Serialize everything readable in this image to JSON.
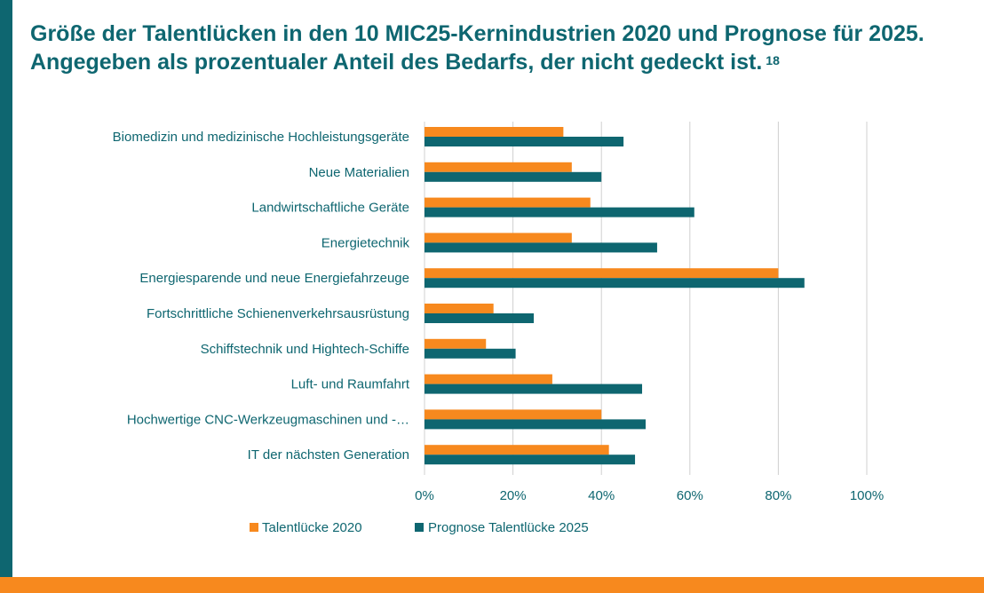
{
  "page": {
    "title": "Größe der Talentlücken in den 10 MIC25-Kernindustrien 2020 und Prognose für 2025. Angegeben als prozentualer Anteil des Bedarfs, der nicht gedeckt ist.",
    "footnote": "18"
  },
  "colors": {
    "teal": "#0e6670",
    "orange": "#f7891e",
    "grid": "#d0d0d0"
  },
  "chart_data": {
    "type": "bar",
    "orientation": "horizontal",
    "categories": [
      "Biomedizin und medizinische Hochleistungsgeräte",
      "Neue Materialien",
      "Landwirtschaftliche Geräte",
      "Energietechnik",
      "Energiesparende und neue Energiefahrzeuge",
      "Fortschrittliche Schienenverkehrsausrüstung",
      "Schiffstechnik und Hightech-Schiffe",
      "Luft- und Raumfahrt",
      "Hochwertige CNC-Werkzeugmaschinen und -…",
      "IT der nächsten Generation"
    ],
    "series": [
      {
        "name": "Talentlücke 2020",
        "color": "#f7891e",
        "values": [
          31.4,
          33.3,
          37.5,
          33.3,
          80.0,
          15.6,
          13.9,
          28.9,
          40.0,
          41.7
        ]
      },
      {
        "name": "Prognose Talentlücke 2025",
        "color": "#0e6670",
        "values": [
          45.0,
          40.0,
          61.0,
          52.6,
          85.9,
          24.7,
          20.6,
          49.2,
          50.0,
          47.6
        ]
      }
    ],
    "xlim": [
      0,
      100
    ],
    "xticks": [
      0,
      20,
      40,
      60,
      80,
      100
    ],
    "xtick_labels": [
      "0%",
      "20%",
      "40%",
      "60%",
      "80%",
      "100%"
    ],
    "grid": true,
    "legend_position": "bottom-left"
  }
}
